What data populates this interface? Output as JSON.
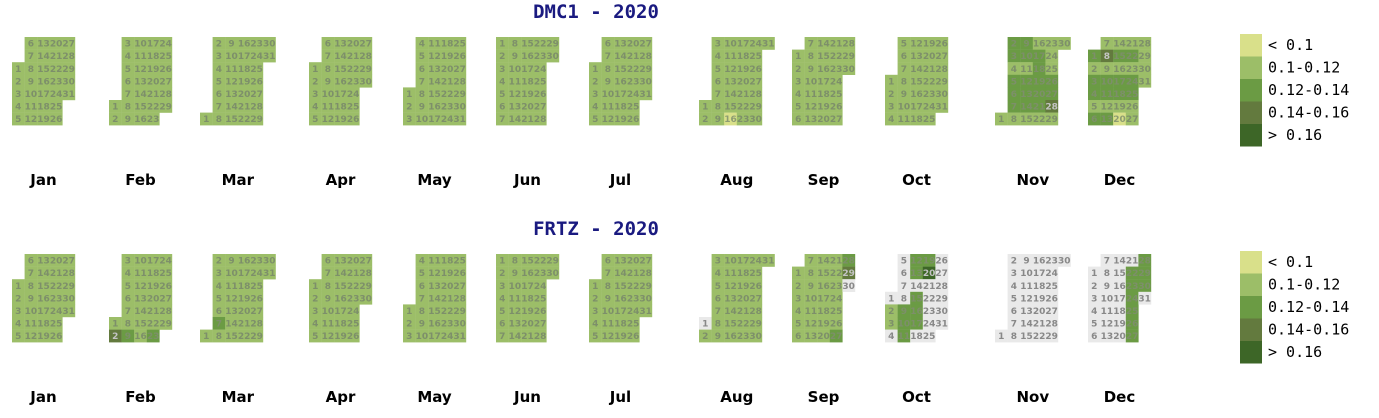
{
  "chart_data": [
    {
      "type": "heatmap",
      "title": "DMC1 - 2020",
      "year": 2020,
      "months": [
        "Jan",
        "Feb",
        "Mar",
        "Apr",
        "May",
        "Jun",
        "Jul",
        "Aug",
        "Sep",
        "Oct",
        "Nov",
        "Dec"
      ],
      "default_class": 1,
      "missing_days": [],
      "overrides": {
        "Aug-16": 0,
        "Nov-2": 2,
        "Nov-9": 2,
        "Nov-3": 2,
        "Nov-10": 2,
        "Nov-17": 2,
        "Nov-18": 2,
        "Nov-5": 2,
        "Nov-12": 2,
        "Nov-19": 2,
        "Nov-26": 2,
        "Nov-6": 2,
        "Nov-13": 2,
        "Nov-20": 2,
        "Nov-27": 2,
        "Nov-7": 2,
        "Nov-14": 2,
        "Nov-21": 2,
        "Nov-28": 3,
        "Dec-1": 2,
        "Dec-8": 3,
        "Dec-15": 2,
        "Dec-22": 2,
        "Dec-3": 2,
        "Dec-10": 2,
        "Dec-17": 2,
        "Dec-24": 2,
        "Dec-4": 2,
        "Dec-11": 2,
        "Dec-18": 2,
        "Dec-25": 2,
        "Dec-6": 2,
        "Dec-13": 2,
        "Dec-20": 0
      }
    },
    {
      "type": "heatmap",
      "title": "FRTZ - 2020",
      "year": 2020,
      "months": [
        "Jan",
        "Feb",
        "Mar",
        "Apr",
        "May",
        "Jun",
        "Jul",
        "Aug",
        "Sep",
        "Oct",
        "Nov",
        "Dec"
      ],
      "default_class": 1,
      "missing_days": [
        "Aug-1",
        "Sep-30",
        "Oct-1",
        "Oct-4",
        "Oct-5",
        "Oct-6",
        "Oct-7",
        "Oct-8",
        "Oct-14",
        "Oct-18",
        "Oct-21",
        "Oct-22",
        "Oct-23",
        "Oct-24",
        "Oct-25",
        "Oct-26",
        "Oct-27",
        "Oct-28",
        "Oct-29",
        "Oct-30",
        "Oct-31",
        "Nov",
        "Dec-1",
        "Dec-2",
        "Dec-3",
        "Dec-4",
        "Dec-5",
        "Dec-6",
        "Dec-7",
        "Dec-8",
        "Dec-9",
        "Dec-10",
        "Dec-11",
        "Dec-12",
        "Dec-13",
        "Dec-14",
        "Dec-15",
        "Dec-16",
        "Dec-17",
        "Dec-18",
        "Dec-19",
        "Dec-20",
        "Dec-21",
        "Dec-31"
      ],
      "overrides": {
        "Feb-2": 3,
        "Feb-9": 2,
        "Feb-23": 2,
        "Mar-7": 2,
        "Sep-28": 2,
        "Sep-29": 3,
        "Sep-27": 2,
        "Oct-12": 2,
        "Oct-19": 2,
        "Oct-13": 2,
        "Oct-20": 4,
        "Oct-15": 2,
        "Oct-9": 2,
        "Oct-16": 2,
        "Oct-10": 2,
        "Oct-17": 2,
        "Oct-11": 2,
        "Oct-2": 1,
        "Oct-3": 1,
        "Dec-28": 2,
        "Dec-22": 2,
        "Dec-29": 2,
        "Dec-23": 2,
        "Dec-30": 2,
        "Dec-24": 2,
        "Dec-25": 2,
        "Dec-26": 2,
        "Dec-27": 2
      }
    }
  ],
  "legend": {
    "labels": [
      "< 0.1",
      "0.1-0.12",
      "0.12-0.14",
      "0.14-0.16",
      "> 0.16"
    ],
    "colors": [
      "#d9e08a",
      "#9cbe68",
      "#6b9b44",
      "#637a3e",
      "#3d6627"
    ]
  },
  "colors": {
    "missing": "#e9e9e9",
    "day_text_light": "#7d8f6a",
    "day_text_dark": "#c4c4c4",
    "day_text_missing": "#888888"
  }
}
